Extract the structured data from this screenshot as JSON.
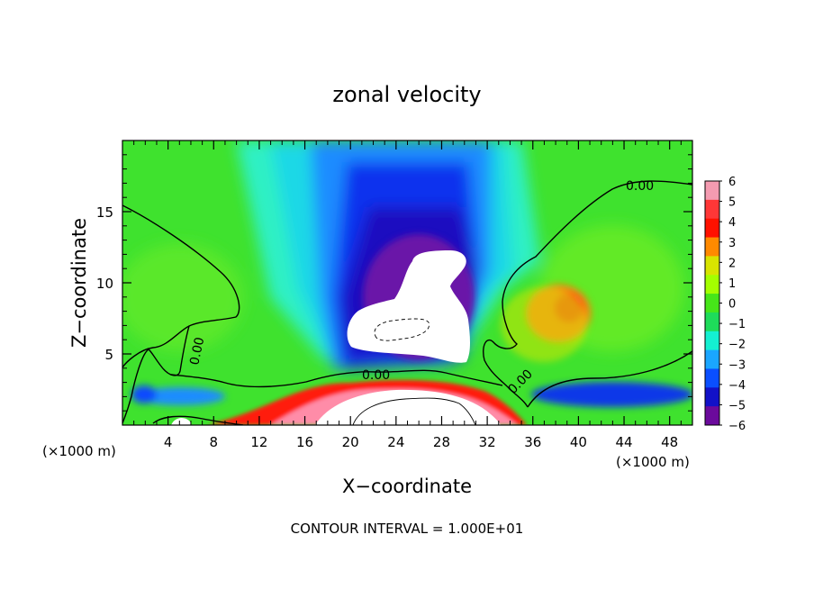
{
  "chart_data": {
    "type": "heatmap",
    "title": "zonal velocity",
    "xlabel": "X−coordinate",
    "ylabel": "Z−coordinate",
    "x_unit_label_left": "(×1000 m)",
    "x_unit_label_right": "(×1000 m)",
    "xlim": [
      0,
      50
    ],
    "ylim": [
      0,
      20
    ],
    "x_ticks": [
      {
        "v": 4,
        "label": "4"
      },
      {
        "v": 8,
        "label": "8"
      },
      {
        "v": 12,
        "label": "12"
      },
      {
        "v": 16,
        "label": "16"
      },
      {
        "v": 20,
        "label": "20"
      },
      {
        "v": 24,
        "label": "24"
      },
      {
        "v": 28,
        "label": "28"
      },
      {
        "v": 32,
        "label": "32"
      },
      {
        "v": 36,
        "label": "36"
      },
      {
        "v": 40,
        "label": "40"
      },
      {
        "v": 44,
        "label": "44"
      },
      {
        "v": 48,
        "label": "48"
      }
    ],
    "y_ticks": [
      {
        "v": 5,
        "label": "5"
      },
      {
        "v": 10,
        "label": "10"
      },
      {
        "v": 15,
        "label": "15"
      }
    ],
    "colorbar": {
      "levels": [
        "6",
        "5",
        "4",
        "3",
        "2",
        "1",
        "0",
        "−1",
        "−2",
        "−3",
        "−4",
        "−5",
        "−6"
      ],
      "range": [
        -6,
        6
      ],
      "colors": [
        "#f49bb1",
        "#ff3737",
        "#ff1100",
        "#ff8a00",
        "#d8e400",
        "#a4ff00",
        "#46e619",
        "#1edc5a",
        "#14f0d2",
        "#1aa6ff",
        "#0a4fff",
        "#1211c8",
        "#6b0a9c"
      ]
    },
    "contour_labels": [
      "0.00",
      "0.00",
      "0.00",
      "0.00"
    ],
    "annotation": "CONTOUR INTERVAL = 1.000E+01"
  }
}
